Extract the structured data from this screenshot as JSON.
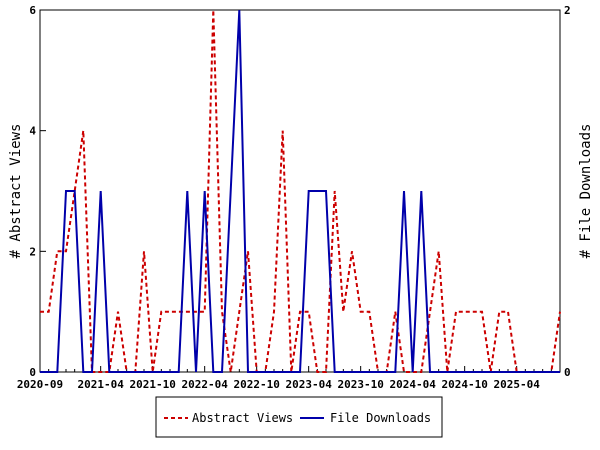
{
  "chart_data": {
    "type": "line",
    "x_tick_labels": [
      "2020-09",
      "2021-04",
      "2021-10",
      "2022-04",
      "2022-10",
      "2023-04",
      "2023-10",
      "2024-04",
      "2024-10",
      "2025-04"
    ],
    "x_tick_dates": [
      "2020-09",
      "2021-04",
      "2021-10",
      "2022-04",
      "2022-10",
      "2023-04",
      "2023-10",
      "2024-04",
      "2024-10",
      "2025-04"
    ],
    "xlim": [
      "2020-09",
      "2025-09"
    ],
    "y_left": {
      "label": "# Abstract Views",
      "ylim": [
        0,
        6
      ],
      "ticks": [
        "0",
        "2",
        "4",
        "6"
      ]
    },
    "y_right": {
      "label": "# File Downloads",
      "ylim": [
        0,
        2
      ],
      "ticks": [
        "0",
        "2"
      ]
    },
    "series": [
      {
        "name": "Abstract Views",
        "axis": "left",
        "color": "#cc0000",
        "style": "dashed",
        "points": [
          [
            "2020-09",
            1
          ],
          [
            "2020-10",
            1
          ],
          [
            "2020-11",
            2
          ],
          [
            "2020-12",
            2
          ],
          [
            "2021-01",
            3
          ],
          [
            "2021-02",
            4
          ],
          [
            "2021-03",
            0
          ],
          [
            "2021-04",
            0
          ],
          [
            "2021-05",
            0
          ],
          [
            "2021-06",
            1
          ],
          [
            "2021-07",
            0
          ],
          [
            "2021-08",
            0
          ],
          [
            "2021-09",
            2
          ],
          [
            "2021-10",
            0
          ],
          [
            "2021-11",
            1
          ],
          [
            "2021-12",
            1
          ],
          [
            "2022-01",
            1
          ],
          [
            "2022-02",
            1
          ],
          [
            "2022-03",
            1
          ],
          [
            "2022-04",
            1
          ],
          [
            "2022-05",
            6
          ],
          [
            "2022-06",
            1
          ],
          [
            "2022-07",
            0
          ],
          [
            "2022-08",
            1
          ],
          [
            "2022-09",
            2
          ],
          [
            "2022-10",
            0
          ],
          [
            "2022-11",
            0
          ],
          [
            "2022-12",
            1
          ],
          [
            "2023-01",
            4
          ],
          [
            "2023-02",
            0
          ],
          [
            "2023-03",
            1
          ],
          [
            "2023-04",
            1
          ],
          [
            "2023-05",
            0
          ],
          [
            "2023-06",
            0
          ],
          [
            "2023-07",
            3
          ],
          [
            "2023-08",
            1
          ],
          [
            "2023-09",
            2
          ],
          [
            "2023-10",
            1
          ],
          [
            "2023-11",
            1
          ],
          [
            "2023-12",
            0
          ],
          [
            "2024-01",
            0
          ],
          [
            "2024-02",
            1
          ],
          [
            "2024-03",
            0
          ],
          [
            "2024-04",
            0
          ],
          [
            "2024-05",
            0
          ],
          [
            "2024-06",
            1
          ],
          [
            "2024-07",
            2
          ],
          [
            "2024-08",
            0
          ],
          [
            "2024-09",
            1
          ],
          [
            "2024-10",
            1
          ],
          [
            "2024-11",
            1
          ],
          [
            "2024-12",
            1
          ],
          [
            "2025-01",
            0
          ],
          [
            "2025-02",
            1
          ],
          [
            "2025-03",
            1
          ],
          [
            "2025-04",
            0
          ],
          [
            "2025-05",
            0
          ],
          [
            "2025-06",
            0
          ],
          [
            "2025-07",
            0
          ],
          [
            "2025-08",
            0
          ],
          [
            "2025-09",
            1
          ]
        ]
      },
      {
        "name": "File Downloads",
        "axis": "right",
        "color": "#0000aa",
        "style": "solid",
        "points": [
          [
            "2020-09",
            0
          ],
          [
            "2020-10",
            0
          ],
          [
            "2020-11",
            0
          ],
          [
            "2020-12",
            1
          ],
          [
            "2021-01",
            1
          ],
          [
            "2021-02",
            0
          ],
          [
            "2021-03",
            0
          ],
          [
            "2021-04",
            1
          ],
          [
            "2021-05",
            0
          ],
          [
            "2021-06",
            0
          ],
          [
            "2021-07",
            0
          ],
          [
            "2021-08",
            0
          ],
          [
            "2021-09",
            0
          ],
          [
            "2021-10",
            0
          ],
          [
            "2021-11",
            0
          ],
          [
            "2021-12",
            0
          ],
          [
            "2022-01",
            0
          ],
          [
            "2022-02",
            1
          ],
          [
            "2022-03",
            0
          ],
          [
            "2022-04",
            1
          ],
          [
            "2022-05",
            0
          ],
          [
            "2022-06",
            0
          ],
          [
            "2022-07",
            1
          ],
          [
            "2022-08",
            2
          ],
          [
            "2022-09",
            0
          ],
          [
            "2022-10",
            0
          ],
          [
            "2022-11",
            0
          ],
          [
            "2022-12",
            0
          ],
          [
            "2023-01",
            0
          ],
          [
            "2023-02",
            0
          ],
          [
            "2023-03",
            0
          ],
          [
            "2023-04",
            1
          ],
          [
            "2023-05",
            1
          ],
          [
            "2023-06",
            1
          ],
          [
            "2023-07",
            0
          ],
          [
            "2023-08",
            0
          ],
          [
            "2023-09",
            0
          ],
          [
            "2023-10",
            0
          ],
          [
            "2023-11",
            0
          ],
          [
            "2023-12",
            0
          ],
          [
            "2024-01",
            0
          ],
          [
            "2024-02",
            0
          ],
          [
            "2024-03",
            1
          ],
          [
            "2024-04",
            0
          ],
          [
            "2024-05",
            1
          ],
          [
            "2024-06",
            0
          ],
          [
            "2024-07",
            0
          ],
          [
            "2024-08",
            0
          ],
          [
            "2024-09",
            0
          ],
          [
            "2024-10",
            0
          ],
          [
            "2024-11",
            0
          ],
          [
            "2024-12",
            0
          ],
          [
            "2025-01",
            0
          ],
          [
            "2025-02",
            0
          ],
          [
            "2025-03",
            0
          ],
          [
            "2025-04",
            0
          ],
          [
            "2025-05",
            0
          ],
          [
            "2025-06",
            0
          ],
          [
            "2025-07",
            0
          ],
          [
            "2025-08",
            0
          ],
          [
            "2025-09",
            0
          ]
        ]
      }
    ],
    "legend": {
      "placement": "bottom-center",
      "entries": [
        "Abstract Views",
        "File Downloads"
      ]
    },
    "grid": false
  }
}
